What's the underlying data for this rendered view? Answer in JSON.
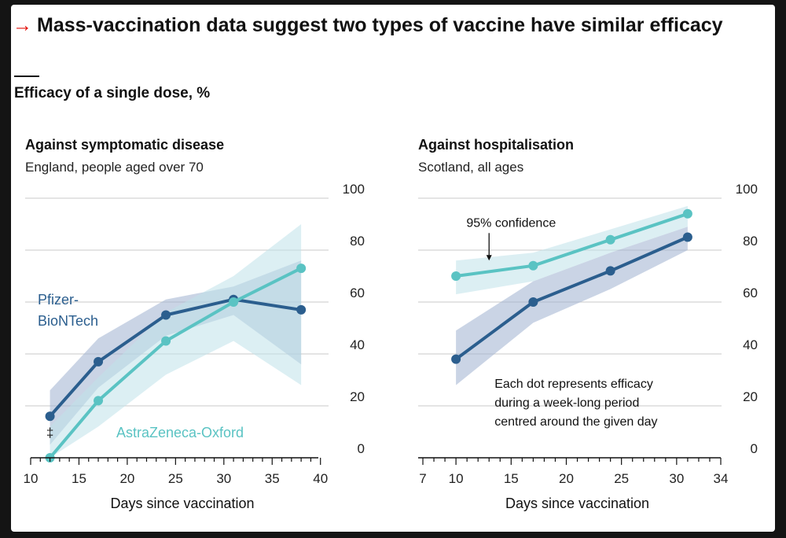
{
  "headline": {
    "arrow": "→",
    "text": "Mass-vaccination data suggest two types of vaccine have similar efficacy"
  },
  "subtitle": "Efficacy of a single dose, %",
  "colors": {
    "pfizer": "#2b5e8e",
    "pfizer_band": "#9fb0cf",
    "astra": "#5ac3c3",
    "astra_band": "#bfe2ea",
    "gridline": "#c9c9c9",
    "axis": "#111111"
  },
  "chart_data": [
    {
      "type": "line",
      "title": "Against symptomatic disease",
      "subtitle": "England, people aged over 70",
      "xlabel": "Days since vaccination",
      "ylabel": "Efficacy of a single dose, %",
      "xlim": [
        10,
        41
      ],
      "ylim": [
        0,
        100
      ],
      "xticks": [
        10,
        15,
        20,
        25,
        30,
        35,
        40
      ],
      "yticks": [
        0,
        20,
        40,
        60,
        80,
        100
      ],
      "series": [
        {
          "name": "Pfizer-BioNTech",
          "label_lines": [
            "Pfizer-",
            "BioNTech"
          ],
          "key": "pfizer",
          "points": [
            [
              12,
              16
            ],
            [
              17,
              37
            ],
            [
              24,
              55
            ],
            [
              31,
              61
            ],
            [
              38,
              57
            ]
          ],
          "ci_lower": [
            [
              12,
              5
            ],
            [
              17,
              27
            ],
            [
              24,
              47
            ],
            [
              31,
              55
            ],
            [
              38,
              36
            ]
          ],
          "ci_upper": [
            [
              12,
              26
            ],
            [
              17,
              46
            ],
            [
              24,
              61
            ],
            [
              31,
              66
            ],
            [
              38,
              76
            ]
          ]
        },
        {
          "name": "AstraZeneca-Oxford",
          "label_lines": [
            "AstraZeneca-Oxford"
          ],
          "key": "astra",
          "points": [
            [
              12,
              0
            ],
            [
              17,
              22
            ],
            [
              24,
              45
            ],
            [
              31,
              60
            ],
            [
              38,
              73
            ]
          ],
          "ci_lower": [
            [
              12,
              0
            ],
            [
              17,
              12
            ],
            [
              24,
              32
            ],
            [
              31,
              45
            ],
            [
              38,
              28
            ]
          ],
          "ci_upper": [
            [
              12,
              12
            ],
            [
              17,
              31
            ],
            [
              24,
              56
            ],
            [
              31,
              70
            ],
            [
              38,
              90
            ]
          ]
        }
      ],
      "annotations": [
        {
          "text": "‡",
          "x": 12,
          "y": 8
        }
      ]
    },
    {
      "type": "line",
      "title": "Against hospitalisation",
      "subtitle": "Scotland, all ages",
      "xlabel": "Days since vaccination",
      "ylabel": "Efficacy of a single dose, %",
      "xlim": [
        7,
        34
      ],
      "ylim": [
        0,
        100
      ],
      "xticks": [
        7,
        10,
        15,
        20,
        25,
        30,
        34
      ],
      "yticks": [
        0,
        20,
        40,
        60,
        80,
        100
      ],
      "series": [
        {
          "name": "Pfizer-BioNTech",
          "key": "pfizer",
          "points": [
            [
              10,
              38
            ],
            [
              17,
              60
            ],
            [
              24,
              72
            ],
            [
              31,
              85
            ]
          ],
          "ci_lower": [
            [
              10,
              28
            ],
            [
              17,
              52
            ],
            [
              24,
              65
            ],
            [
              31,
              80
            ]
          ],
          "ci_upper": [
            [
              10,
              49
            ],
            [
              17,
              68
            ],
            [
              24,
              79
            ],
            [
              31,
              89
            ]
          ]
        },
        {
          "name": "AstraZeneca-Oxford",
          "key": "astra",
          "points": [
            [
              10,
              70
            ],
            [
              17,
              74
            ],
            [
              24,
              84
            ],
            [
              31,
              94
            ]
          ],
          "ci_lower": [
            [
              10,
              63
            ],
            [
              17,
              68
            ],
            [
              24,
              79
            ],
            [
              31,
              89
            ]
          ],
          "ci_upper": [
            [
              10,
              76
            ],
            [
              17,
              79
            ],
            [
              24,
              88
            ],
            [
              31,
              97
            ]
          ]
        }
      ],
      "annotations": [
        {
          "text": "95% confidence",
          "x": 15,
          "y": 89,
          "arrow_to": [
            13,
            76
          ]
        },
        {
          "text_lines": [
            "Each dot represents efficacy",
            "during a week-long period",
            "centred around the given day"
          ],
          "x": 13.5,
          "y": 27
        }
      ]
    }
  ]
}
